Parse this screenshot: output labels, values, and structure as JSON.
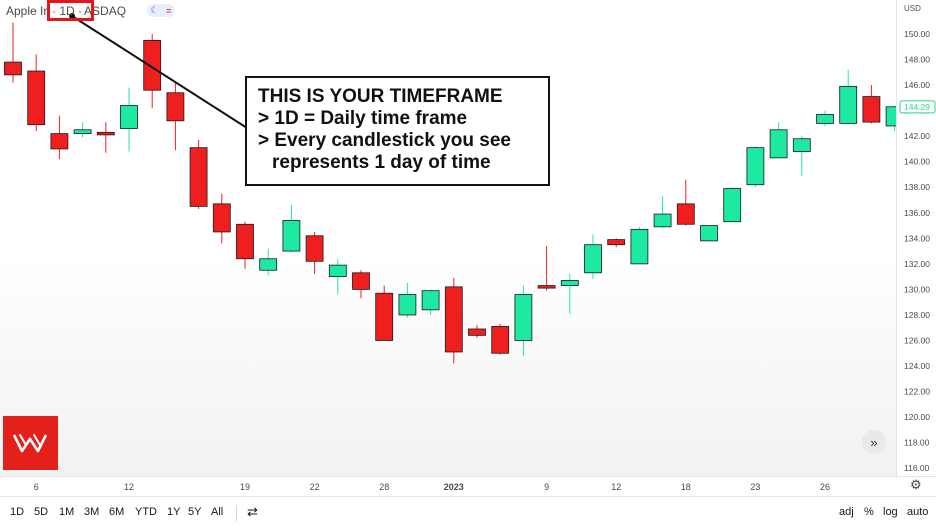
{
  "header": {
    "symbol_name": "Apple In",
    "interval": "· 1D ·",
    "exchange": "ASDAQ"
  },
  "callout": {
    "line1": "THIS IS YOUR TIMEFRAME",
    "line2": "> 1D = Daily time frame",
    "line3": "> Every candlestick you see",
    "line4": "represents 1 day of time"
  },
  "price_axis": {
    "currency": "USD",
    "last_price": "144.29",
    "last_price_color": "#26d88f"
  },
  "colors": {
    "up": "#1de9a0",
    "down": "#f01f1f",
    "highlight": "#e8141c",
    "logo_bg": "#e3201c"
  },
  "bottom_bar": {
    "ranges": [
      "1D",
      "5D",
      "1M",
      "3M",
      "6M",
      "YTD",
      "1Y",
      "5Y",
      "All"
    ],
    "right": [
      "adj",
      "%",
      "log",
      "auto"
    ]
  },
  "chart_data": {
    "type": "candlestick",
    "title": "",
    "xlabel": "",
    "ylabel": "",
    "ylim": [
      116,
      152
    ],
    "y_ticks": [
      "116.00",
      "118.00",
      "120.00",
      "122.00",
      "124.00",
      "126.00",
      "128.00",
      "130.00",
      "132.00",
      "134.00",
      "136.00",
      "138.00",
      "140.00",
      "142.00",
      "144.00",
      "146.00",
      "148.00",
      "150.00"
    ],
    "x_ticks": [
      {
        "label": "6",
        "index": 1
      },
      {
        "label": "12",
        "index": 5
      },
      {
        "label": "19",
        "index": 10
      },
      {
        "label": "22",
        "index": 13
      },
      {
        "label": "28",
        "index": 16
      },
      {
        "label": "2023",
        "index": 19,
        "bold": true
      },
      {
        "label": "9",
        "index": 23
      },
      {
        "label": "12",
        "index": 26
      },
      {
        "label": "18",
        "index": 29
      },
      {
        "label": "23",
        "index": 32
      },
      {
        "label": "26",
        "index": 35
      }
    ],
    "candles": [
      {
        "o": 147.8,
        "h": 150.9,
        "l": 146.2,
        "c": 146.8
      },
      {
        "o": 147.1,
        "h": 148.4,
        "l": 142.4,
        "c": 142.9
      },
      {
        "o": 142.2,
        "h": 143.6,
        "l": 140.2,
        "c": 141.0
      },
      {
        "o": 142.2,
        "h": 143.1,
        "l": 141.9,
        "c": 142.5
      },
      {
        "o": 142.3,
        "h": 143.1,
        "l": 140.7,
        "c": 142.1
      },
      {
        "o": 142.6,
        "h": 145.8,
        "l": 140.8,
        "c": 144.4
      },
      {
        "o": 149.5,
        "h": 150.0,
        "l": 144.2,
        "c": 145.6
      },
      {
        "o": 145.4,
        "h": 146.3,
        "l": 140.9,
        "c": 143.2
      },
      {
        "o": 141.1,
        "h": 141.7,
        "l": 136.3,
        "c": 136.5
      },
      {
        "o": 136.7,
        "h": 137.5,
        "l": 133.6,
        "c": 134.5
      },
      {
        "o": 135.1,
        "h": 135.3,
        "l": 131.6,
        "c": 132.4
      },
      {
        "o": 131.5,
        "h": 133.2,
        "l": 131.1,
        "c": 132.4
      },
      {
        "o": 133.0,
        "h": 136.6,
        "l": 132.9,
        "c": 135.4
      },
      {
        "o": 134.2,
        "h": 134.5,
        "l": 131.2,
        "c": 132.2
      },
      {
        "o": 131.0,
        "h": 132.4,
        "l": 129.6,
        "c": 131.9
      },
      {
        "o": 131.3,
        "h": 131.5,
        "l": 129.3,
        "c": 130.0
      },
      {
        "o": 129.7,
        "h": 130.3,
        "l": 126.0,
        "c": 126.0
      },
      {
        "o": 128.0,
        "h": 130.5,
        "l": 127.8,
        "c": 129.6
      },
      {
        "o": 128.4,
        "h": 130.0,
        "l": 128.0,
        "c": 129.9
      },
      {
        "o": 130.2,
        "h": 130.9,
        "l": 124.2,
        "c": 125.1
      },
      {
        "o": 126.9,
        "h": 127.2,
        "l": 126.2,
        "c": 126.4
      },
      {
        "o": 127.1,
        "h": 127.3,
        "l": 124.9,
        "c": 125.0
      },
      {
        "o": 126.0,
        "h": 130.3,
        "l": 124.8,
        "c": 129.6
      },
      {
        "o": 130.3,
        "h": 133.4,
        "l": 129.9,
        "c": 130.1
      },
      {
        "o": 130.3,
        "h": 131.2,
        "l": 128.1,
        "c": 130.7
      },
      {
        "o": 131.3,
        "h": 134.3,
        "l": 130.8,
        "c": 133.5
      },
      {
        "o": 133.9,
        "h": 134.0,
        "l": 133.3,
        "c": 133.5
      },
      {
        "o": 132.0,
        "h": 134.9,
        "l": 132.0,
        "c": 134.7
      },
      {
        "o": 134.9,
        "h": 137.3,
        "l": 134.8,
        "c": 135.9
      },
      {
        "o": 136.7,
        "h": 138.6,
        "l": 135.0,
        "c": 135.1
      },
      {
        "o": 133.8,
        "h": 134.8,
        "l": 133.8,
        "c": 135.0
      },
      {
        "o": 135.3,
        "h": 138.0,
        "l": 135.3,
        "c": 137.9
      },
      {
        "o": 138.2,
        "h": 141.2,
        "l": 138.0,
        "c": 141.1
      },
      {
        "o": 140.3,
        "h": 143.1,
        "l": 140.3,
        "c": 142.5
      },
      {
        "o": 140.8,
        "h": 142.0,
        "l": 138.9,
        "c": 141.8
      },
      {
        "o": 143.0,
        "h": 144.0,
        "l": 142.8,
        "c": 143.7
      },
      {
        "o": 143.0,
        "h": 147.2,
        "l": 143.0,
        "c": 145.9
      },
      {
        "o": 145.1,
        "h": 146.0,
        "l": 143.0,
        "c": 143.1
      },
      {
        "o": 142.8,
        "h": 144.4,
        "l": 142.4,
        "c": 144.3
      }
    ]
  }
}
